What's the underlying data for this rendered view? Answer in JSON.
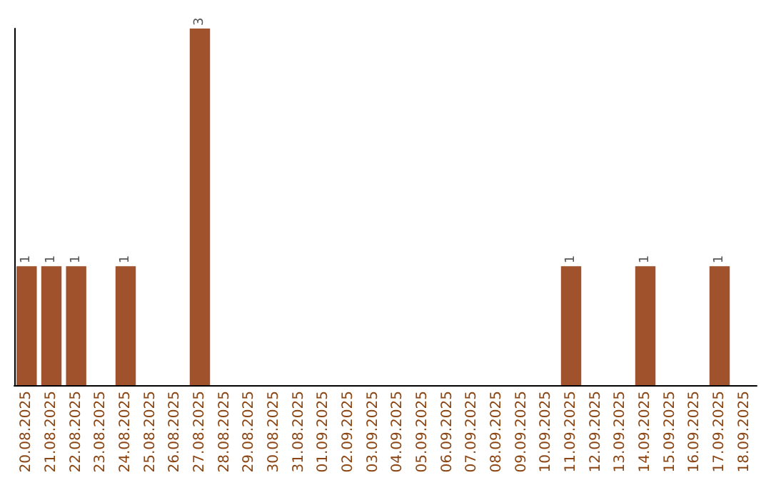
{
  "chart_data": {
    "type": "bar",
    "categories": [
      "20.08.2025",
      "21.08.2025",
      "22.08.2025",
      "23.08.2025",
      "24.08.2025",
      "25.08.2025",
      "26.08.2025",
      "27.08.2025",
      "28.08.2025",
      "29.08.2025",
      "30.08.2025",
      "31.08.2025",
      "01.09.2025",
      "02.09.2025",
      "03.09.2025",
      "04.09.2025",
      "05.09.2025",
      "06.09.2025",
      "07.09.2025",
      "08.09.2025",
      "09.09.2025",
      "10.09.2025",
      "11.09.2025",
      "12.09.2025",
      "13.09.2025",
      "14.09.2025",
      "15.09.2025",
      "16.09.2025",
      "17.09.2025",
      "18.09.2025"
    ],
    "values": [
      1,
      1,
      1,
      0,
      1,
      0,
      0,
      3,
      0,
      0,
      0,
      0,
      0,
      0,
      0,
      0,
      0,
      0,
      0,
      0,
      0,
      0,
      1,
      0,
      0,
      1,
      0,
      0,
      1,
      0
    ],
    "value_labels": [
      "1",
      "1",
      "1",
      null,
      "1",
      null,
      null,
      "3",
      null,
      null,
      null,
      null,
      null,
      null,
      null,
      null,
      null,
      null,
      null,
      null,
      null,
      null,
      "1",
      null,
      null,
      "1",
      null,
      null,
      "1",
      null
    ],
    "color": "#a0522d",
    "tick_labels": "x"
  }
}
